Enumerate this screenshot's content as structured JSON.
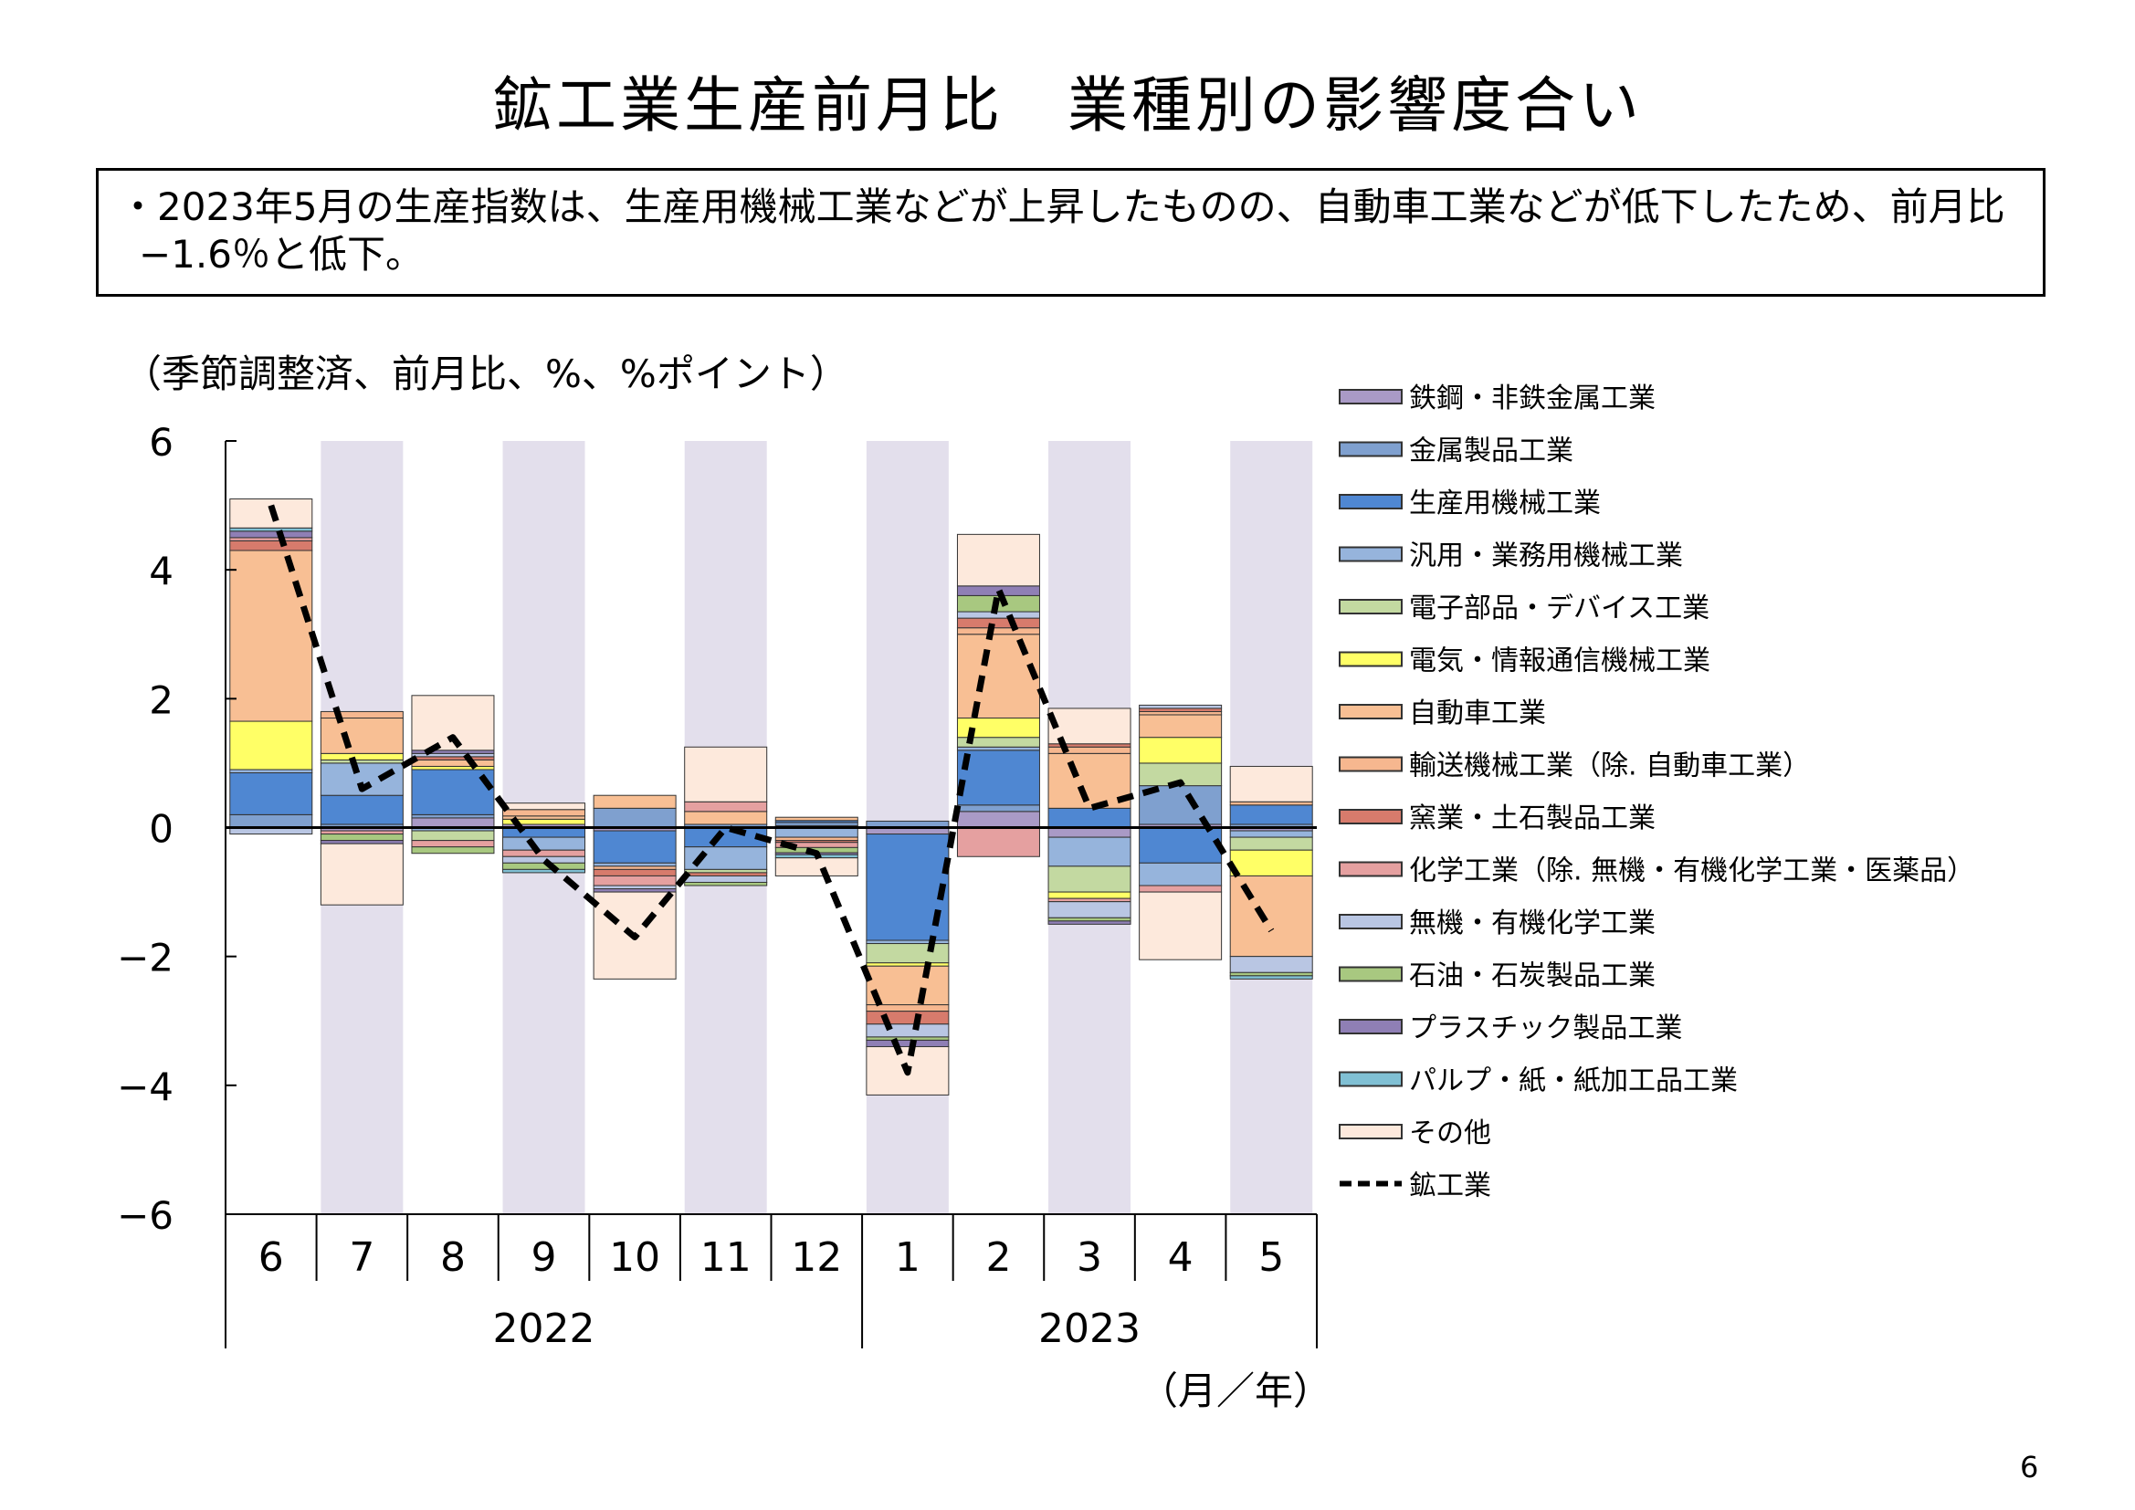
{
  "title": "鉱工業生産前月比　業種別の影響度合い",
  "summary": "・2023年5月の生産指数は、生産用機械工業などが上昇したものの、自動車工業などが低下したため、前月比−1.6％と低下。",
  "unit_label": "（季節調整済、前月比、%、%ポイント）",
  "axis_unit_label": "（月／年）",
  "page_number": "6",
  "colors": {
    "shade": "#E3DFEC",
    "axis": "#000000",
    "line": "#000000"
  },
  "chart_data": {
    "type": "bar",
    "stacked": true,
    "title": "鉱工業生産前月比　業種別の影響度合い",
    "ylim": [
      -6,
      6
    ],
    "yticks": [
      6,
      4,
      2,
      0,
      -2,
      -4,
      -6
    ],
    "ytick_labels": [
      "6",
      "4",
      "2",
      "0",
      "−2",
      "−4",
      "−6"
    ],
    "categories": [
      "6",
      "7",
      "8",
      "9",
      "10",
      "11",
      "12",
      "1",
      "2",
      "3",
      "4",
      "5"
    ],
    "years": [
      {
        "label": "2022",
        "start": 0,
        "end": 6
      },
      {
        "label": "2023",
        "start": 7,
        "end": 11
      }
    ],
    "shaded_months": [
      1,
      3,
      5,
      7,
      9,
      11
    ],
    "legend_position": "right",
    "series": [
      {
        "name": "鉄鋼・非鉄金属工業",
        "color": "#A99AC6",
        "values": [
          0.0,
          -0.05,
          0.15,
          0.05,
          -0.05,
          0.0,
          0.03,
          -0.1,
          0.25,
          -0.15,
          0.05,
          -0.05
        ]
      },
      {
        "name": "金属製品工業",
        "color": "#7FA0CF",
        "values": [
          0.2,
          0.05,
          0.05,
          0.0,
          0.3,
          0.05,
          0.05,
          0.1,
          0.1,
          0.0,
          0.6,
          0.05
        ]
      },
      {
        "name": "生産用機械工業",
        "color": "#4F87D2",
        "values": [
          0.65,
          0.45,
          0.7,
          -0.15,
          -0.5,
          -0.3,
          0.03,
          -1.65,
          0.85,
          0.3,
          -0.55,
          0.3
        ]
      },
      {
        "name": "汎用・業務用機械工業",
        "color": "#96B4DC",
        "values": [
          0.05,
          0.5,
          -0.05,
          -0.2,
          -0.05,
          -0.35,
          -0.15,
          -0.05,
          0.05,
          -0.45,
          -0.35,
          -0.1
        ]
      },
      {
        "name": "電子部品・デバイス工業",
        "color": "#C3D9A1",
        "values": [
          0.0,
          0.05,
          -0.15,
          0.0,
          0.0,
          -0.05,
          0.0,
          -0.3,
          0.15,
          -0.4,
          0.35,
          -0.2
        ]
      },
      {
        "name": "電気・情報通信機械工業",
        "color": "#FFFF66",
        "values": [
          0.75,
          0.1,
          0.05,
          0.08,
          0.0,
          0.0,
          0.0,
          -0.05,
          0.3,
          -0.1,
          0.4,
          -0.4
        ]
      },
      {
        "name": "自動車工業",
        "color": "#F8BF94",
        "values": [
          2.65,
          0.55,
          0.1,
          0.05,
          0.2,
          0.2,
          0.05,
          -0.6,
          1.3,
          0.85,
          0.35,
          -1.25
        ]
      },
      {
        "name": "輸送機械工業（除. 自動車工業）",
        "color": "#F6B78F",
        "values": [
          0.0,
          0.1,
          0.0,
          0.1,
          -0.05,
          0.0,
          -0.05,
          -0.1,
          0.1,
          0.1,
          0.05,
          0.05
        ]
      },
      {
        "name": "窯業・土石製品工業",
        "color": "#D77B6C",
        "values": [
          0.15,
          0.0,
          0.05,
          0.0,
          -0.1,
          -0.05,
          -0.03,
          -0.2,
          0.15,
          0.05,
          0.05,
          0.0
        ]
      },
      {
        "name": "化学工業（除. 無機・有機化学工業・医薬品）",
        "color": "#E5A0A0",
        "values": [
          0.05,
          -0.05,
          -0.1,
          -0.1,
          -0.15,
          0.15,
          -0.08,
          0.0,
          -0.45,
          -0.05,
          -0.1,
          0.0
        ]
      },
      {
        "name": "無機・有機化学工業",
        "color": "#B9C6E3",
        "values": [
          -0.1,
          0.0,
          0.05,
          -0.1,
          -0.05,
          -0.1,
          0.0,
          -0.2,
          0.1,
          -0.25,
          0.05,
          -0.25
        ]
      },
      {
        "name": "石油・石炭製品工業",
        "color": "#A8C880",
        "values": [
          0.0,
          -0.1,
          -0.1,
          -0.1,
          0.0,
          -0.05,
          -0.08,
          -0.05,
          0.25,
          -0.05,
          0.0,
          -0.05
        ]
      },
      {
        "name": "プラスチック製品工業",
        "color": "#8F7FB5",
        "values": [
          0.1,
          -0.05,
          0.05,
          0.0,
          -0.05,
          0.0,
          -0.03,
          -0.1,
          0.15,
          -0.05,
          0.0,
          0.0
        ]
      },
      {
        "name": "パルプ・紙・紙加工品工業",
        "color": "#80C0D4",
        "values": [
          0.05,
          0.0,
          0.0,
          -0.05,
          0.0,
          0.0,
          -0.05,
          0.0,
          0.0,
          0.0,
          0.0,
          -0.05
        ]
      },
      {
        "name": "その他",
        "color": "#FDE9DC",
        "values": [
          0.45,
          -0.95,
          0.85,
          0.1,
          -1.35,
          0.85,
          -0.28,
          -0.75,
          0.8,
          0.55,
          -1.05,
          0.55
        ]
      }
    ],
    "line": {
      "name": "鉱工業",
      "values": [
        5.0,
        0.6,
        1.4,
        -0.5,
        -1.7,
        0.0,
        -0.4,
        -3.8,
        3.7,
        0.3,
        0.7,
        -1.6
      ]
    }
  }
}
